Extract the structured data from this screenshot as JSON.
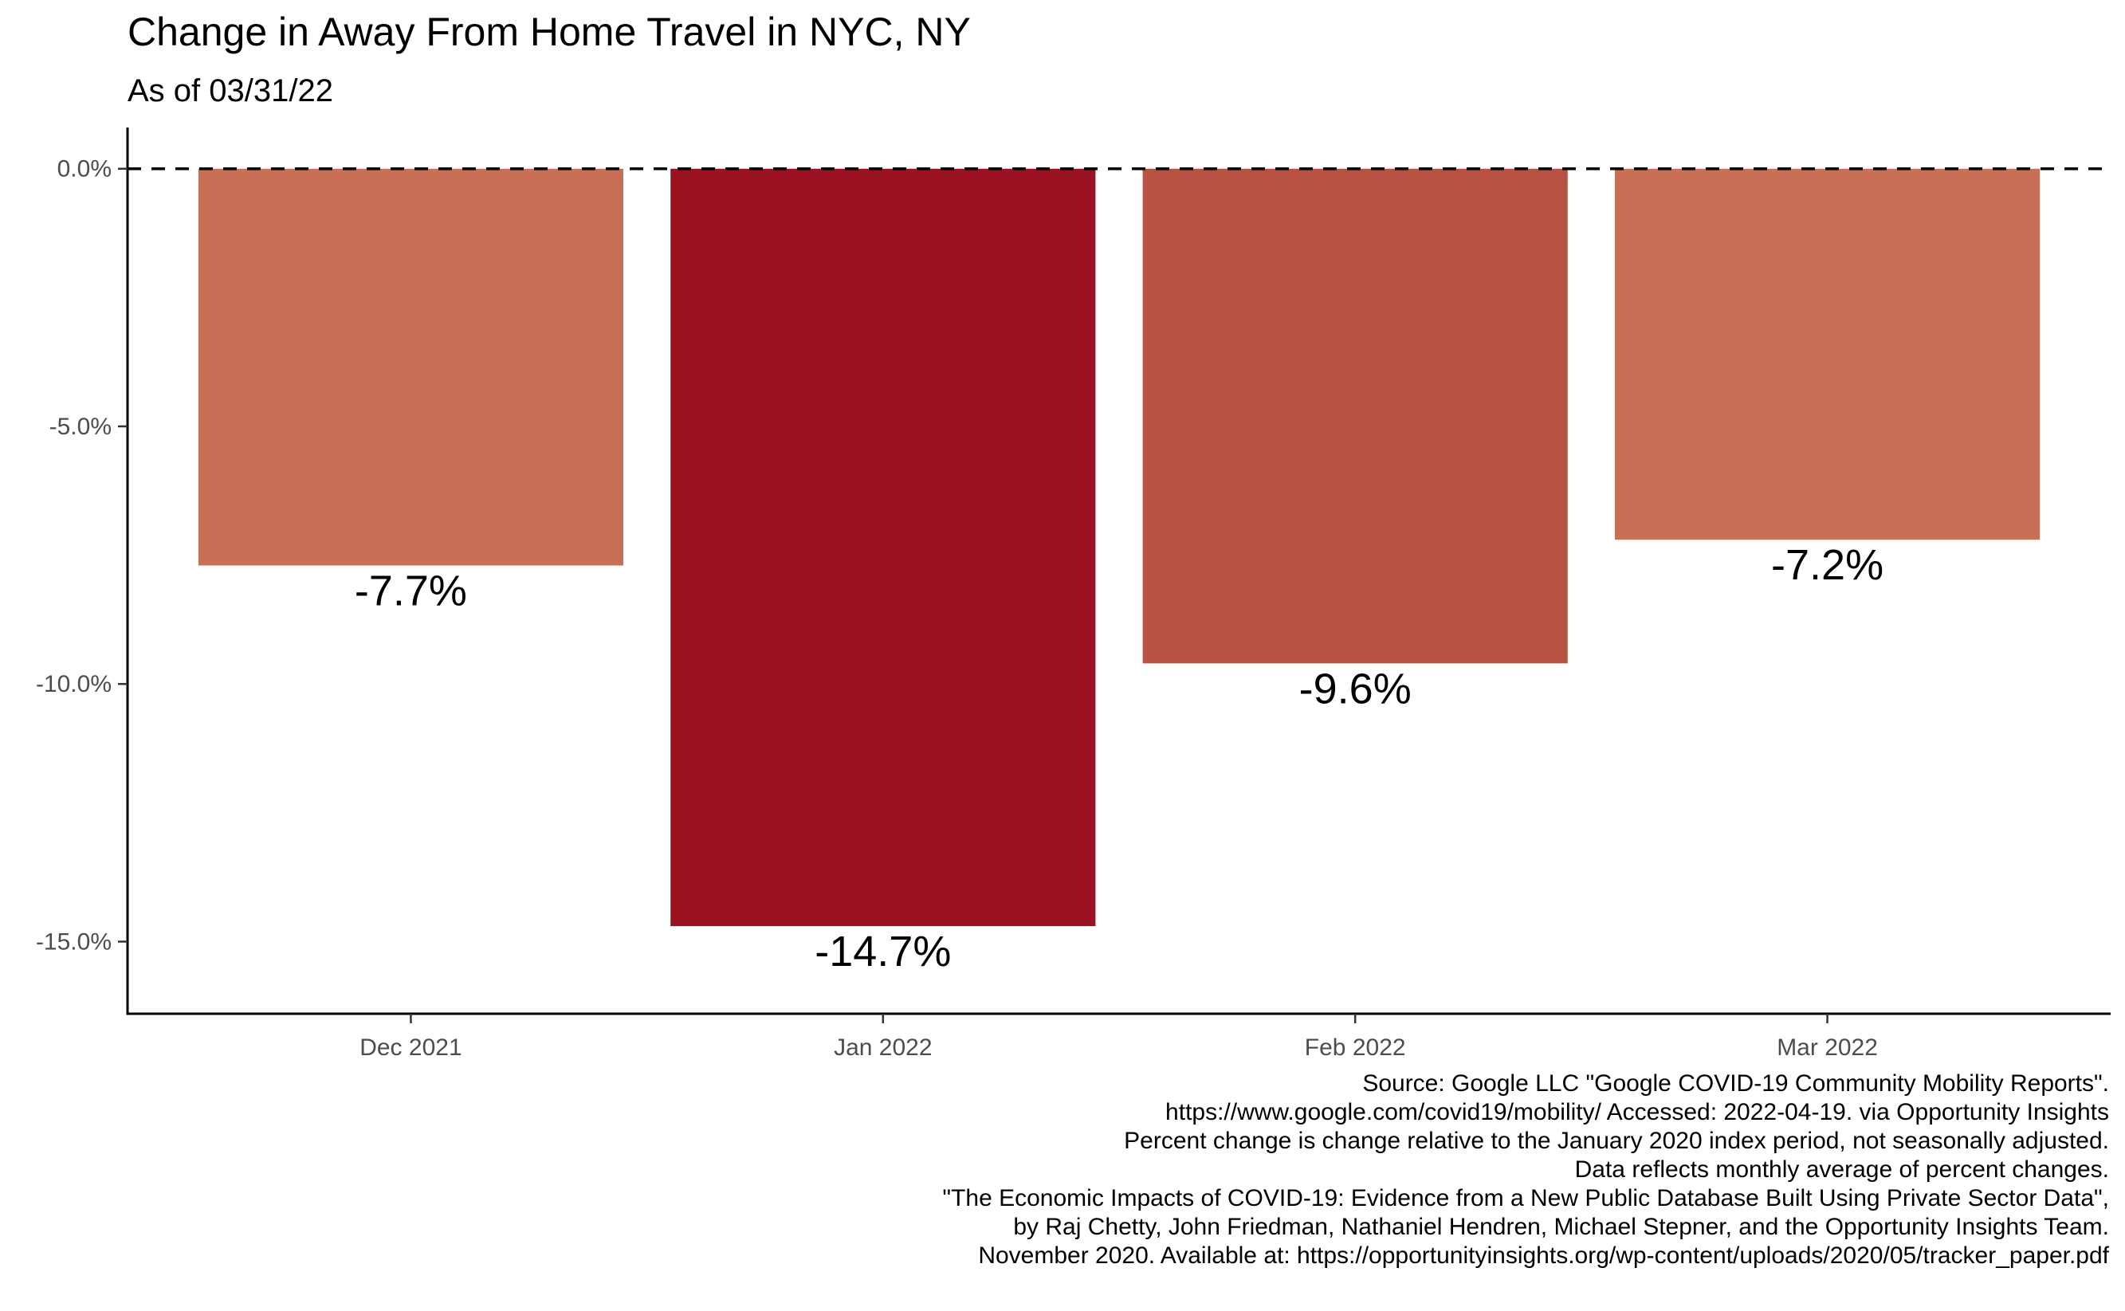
{
  "title": "Change in Away From Home Travel in NYC, NY",
  "subtitle": "As of 03/31/22",
  "chart_data": {
    "type": "bar",
    "categories": [
      "Dec 2021",
      "Jan 2022",
      "Feb 2022",
      "Mar 2022"
    ],
    "values": [
      -7.7,
      -14.7,
      -9.6,
      -7.2
    ],
    "value_labels": [
      "-7.7%",
      "-14.7%",
      "-9.6%",
      "-7.2%"
    ],
    "colors": [
      "#c86f55",
      "#9a1221",
      "#b85243",
      "#c86f55"
    ],
    "ylim": [
      -16.4,
      0.8
    ],
    "yticks": [
      0,
      -5,
      -10,
      -15
    ],
    "ytick_labels": [
      "0.0%",
      "-5.0%",
      "-10.0%",
      "-15.0%"
    ],
    "reference_line": {
      "value": 0,
      "style": "dashed"
    },
    "xlabel": "",
    "ylabel": "",
    "grid": false,
    "legend": "none"
  },
  "caption": [
    "Source: Google LLC \"Google COVID-19 Community Mobility Reports\".",
    "https://www.google.com/covid19/mobility/ Accessed: 2022-04-19. via Opportunity Insights",
    "Percent change is change relative to the January 2020 index period, not seasonally adjusted.",
    "Data reflects monthly average of percent changes.",
    "\"The Economic Impacts of COVID-19: Evidence from a New Public Database Built Using Private Sector Data\",",
    "by Raj Chetty, John Friedman, Nathaniel Hendren, Michael Stepner, and the Opportunity Insights Team.",
    "November 2020. Available at: https://opportunityinsights.org/wp-content/uploads/2020/05/tracker_paper.pdf"
  ]
}
